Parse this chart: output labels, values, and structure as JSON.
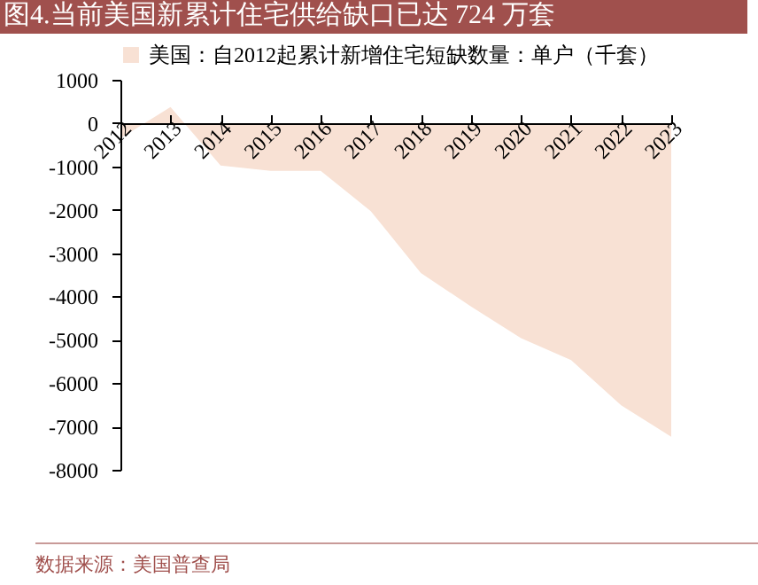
{
  "chart_data": {
    "type": "area",
    "title": "图4.当前美国新累计住宅供给缺口已达 724 万套",
    "categories": [
      "2012",
      "2013",
      "2014",
      "2015",
      "2016",
      "2017",
      "2018",
      "2019",
      "2020",
      "2021",
      "2022",
      "2023"
    ],
    "series": [
      {
        "name": "美国：自2012起累计新增住宅短缺数量：单户（千套）",
        "color": "#f8e1d4",
        "values": [
          -350,
          370,
          -980,
          -1100,
          -1100,
          -2030,
          -3460,
          -4230,
          -4960,
          -5470,
          -6510,
          -7240
        ]
      }
    ],
    "ylim": [
      -8000,
      1000
    ],
    "yticks": [
      -8000,
      -7000,
      -6000,
      -5000,
      -4000,
      -3000,
      -2000,
      -1000,
      0,
      1000
    ],
    "legend": "top",
    "grid": false,
    "annotations": [
      "数据来源：美国普查局"
    ]
  }
}
